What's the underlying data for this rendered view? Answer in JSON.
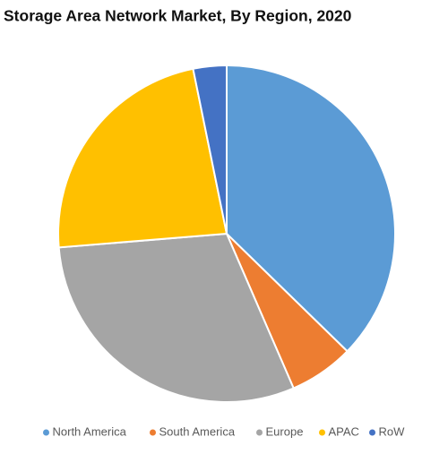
{
  "chart_data": {
    "type": "pie",
    "title": "Storage Area Network Market, By Region, 2020",
    "categories": [
      "North America",
      "South America",
      "Europe",
      "APAC",
      "RoW"
    ],
    "values": [
      37.3,
      6.2,
      30.2,
      23.1,
      3.2
    ],
    "colors": [
      "#5b9bd5",
      "#ed7d31",
      "#a5a5a5",
      "#ffc000",
      "#4472c4"
    ],
    "legend": "bottom"
  }
}
